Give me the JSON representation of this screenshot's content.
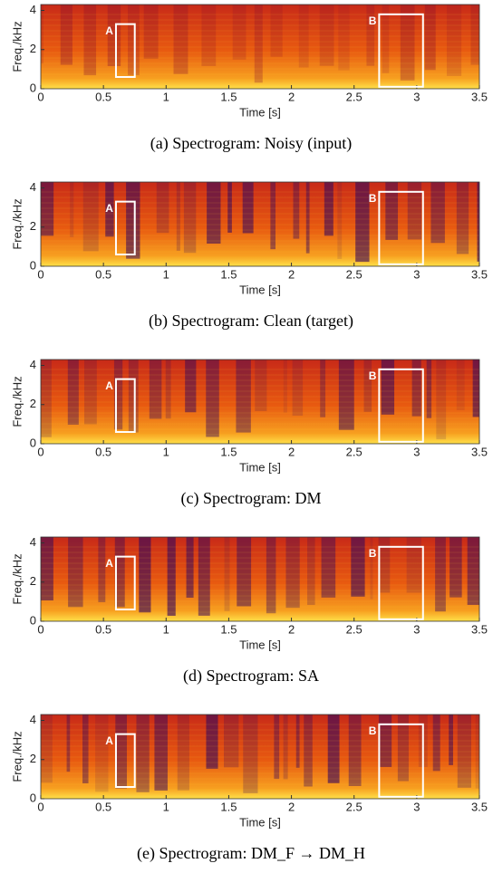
{
  "chart_data": [
    {
      "type": "spectrogram",
      "caption": "(a) Spectrogram: Noisy (input)",
      "xlabel": "Time [s]",
      "ylabel": "Freq./kHz",
      "xlim": [
        0,
        3.5
      ],
      "xticks": [
        0,
        0.5,
        1,
        1.5,
        2,
        2.5,
        3,
        3.5
      ],
      "ylim": [
        0,
        4.3
      ],
      "yticks": [
        0,
        2,
        4
      ],
      "annotations": [
        {
          "label": "A",
          "x": [
            0.6,
            0.75
          ],
          "y": [
            0.6,
            3.3
          ]
        },
        {
          "label": "B",
          "x": [
            2.7,
            3.05
          ],
          "y": [
            0.1,
            3.8
          ]
        }
      ]
    },
    {
      "type": "spectrogram",
      "caption": "(b) Spectrogram: Clean (target)",
      "xlabel": "Time [s]",
      "ylabel": "Freq./kHz",
      "xlim": [
        0,
        3.5
      ],
      "xticks": [
        0,
        0.5,
        1,
        1.5,
        2,
        2.5,
        3,
        3.5
      ],
      "ylim": [
        0,
        4.3
      ],
      "yticks": [
        0,
        2,
        4
      ],
      "annotations": [
        {
          "label": "A",
          "x": [
            0.6,
            0.75
          ],
          "y": [
            0.6,
            3.3
          ]
        },
        {
          "label": "B",
          "x": [
            2.7,
            3.05
          ],
          "y": [
            0.1,
            3.8
          ]
        }
      ]
    },
    {
      "type": "spectrogram",
      "caption": "(c) Spectrogram: DM",
      "xlabel": "Time [s]",
      "ylabel": "Freq./kHz",
      "xlim": [
        0,
        3.5
      ],
      "xticks": [
        0,
        0.5,
        1,
        1.5,
        2,
        2.5,
        3,
        3.5
      ],
      "ylim": [
        0,
        4.3
      ],
      "yticks": [
        0,
        2,
        4
      ],
      "annotations": [
        {
          "label": "A",
          "x": [
            0.6,
            0.75
          ],
          "y": [
            0.6,
            3.3
          ]
        },
        {
          "label": "B",
          "x": [
            2.7,
            3.05
          ],
          "y": [
            0.1,
            3.8
          ]
        }
      ]
    },
    {
      "type": "spectrogram",
      "caption": "(d) Spectrogram: SA",
      "xlabel": "Time [s]",
      "ylabel": "Freq./kHz",
      "xlim": [
        0,
        3.5
      ],
      "xticks": [
        0,
        0.5,
        1,
        1.5,
        2,
        2.5,
        3,
        3.5
      ],
      "ylim": [
        0,
        4.3
      ],
      "yticks": [
        0,
        2,
        4
      ],
      "annotations": [
        {
          "label": "A",
          "x": [
            0.6,
            0.75
          ],
          "y": [
            0.6,
            3.3
          ]
        },
        {
          "label": "B",
          "x": [
            2.7,
            3.05
          ],
          "y": [
            0.1,
            3.8
          ]
        }
      ]
    },
    {
      "type": "spectrogram",
      "caption": "(e) Spectrogram: DM_F → DM_H",
      "xlabel": "Time [s]",
      "ylabel": "Freq./kHz",
      "xlim": [
        0,
        3.5
      ],
      "xticks": [
        0,
        0.5,
        1,
        1.5,
        2,
        2.5,
        3,
        3.5
      ],
      "ylim": [
        0,
        4.3
      ],
      "yticks": [
        0,
        2,
        4
      ],
      "annotations": [
        {
          "label": "A",
          "x": [
            0.6,
            0.75
          ],
          "y": [
            0.6,
            3.3
          ]
        },
        {
          "label": "B",
          "x": [
            2.7,
            3.05
          ],
          "y": [
            0.1,
            3.8
          ]
        }
      ]
    }
  ]
}
